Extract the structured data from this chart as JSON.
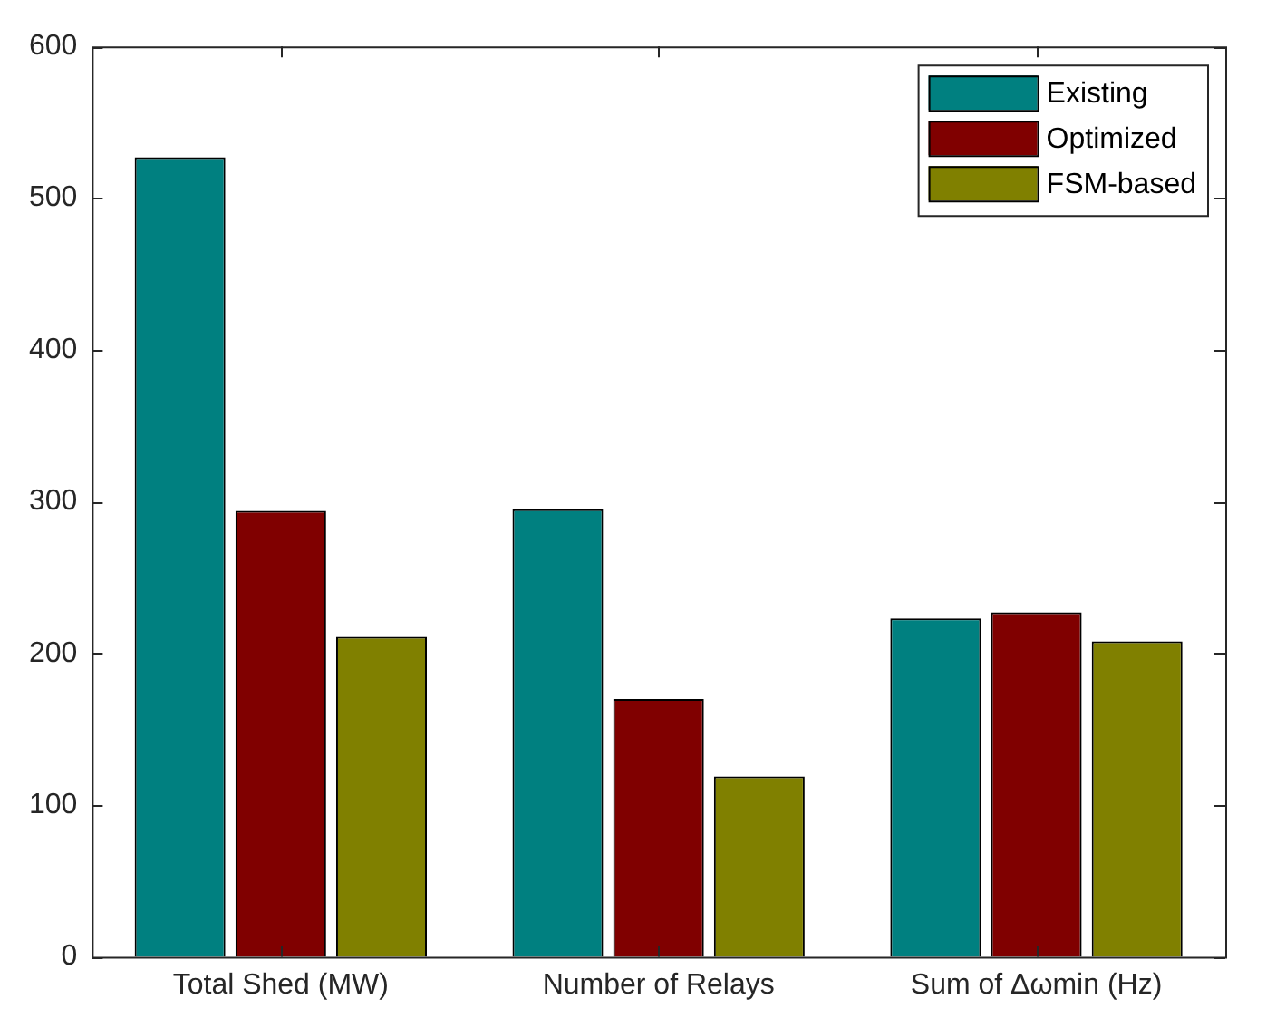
{
  "chart_data": {
    "type": "bar",
    "categories": [
      "Total Shed (MW)",
      "Number of Relays",
      "Sum of Δωmin (Hz)"
    ],
    "series": [
      {
        "name": "Existing",
        "color": "#008080",
        "values": [
          527,
          295,
          223
        ]
      },
      {
        "name": "Optimized",
        "color": "#800000",
        "values": [
          294,
          170,
          227
        ]
      },
      {
        "name": "FSM-based",
        "color": "#808000",
        "values": [
          211,
          119,
          208
        ]
      }
    ],
    "ylim": [
      0,
      600
    ],
    "yticks": [
      0,
      100,
      200,
      300,
      400,
      500,
      600
    ],
    "grid": false,
    "legend": "top right"
  }
}
